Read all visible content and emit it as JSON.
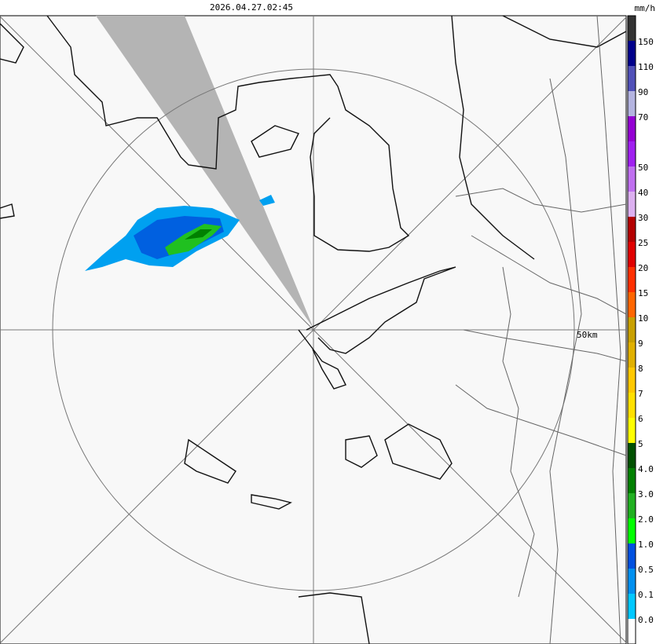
{
  "header": {
    "timestamp": "2026.04.27.02:45",
    "unit": "mm/h"
  },
  "map": {
    "range_label": "50km"
  },
  "legend": {
    "labels": [
      "150",
      "110",
      "90",
      "70",
      "50",
      "40",
      "30",
      "25",
      "20",
      "15",
      "10",
      "9",
      "8",
      "7",
      "6",
      "5",
      "4.0",
      "3.0",
      "2.0",
      "1.0",
      "0.5",
      "0.1",
      "0.0"
    ],
    "colors": [
      "#333333",
      "#00008b",
      "#5050b8",
      "#b4b4e0",
      "#9400d3",
      "#a020f0",
      "#c070f0",
      "#dcb0f0",
      "#b40000",
      "#e00000",
      "#ff3000",
      "#ff6600",
      "#c8a000",
      "#e0b000",
      "#ffc800",
      "#ffe000",
      "#ffff00",
      "#005000",
      "#008000",
      "#20b020",
      "#00ff00",
      "#0050e0",
      "#0090f0",
      "#00c8ff",
      "#ffffff"
    ]
  }
}
